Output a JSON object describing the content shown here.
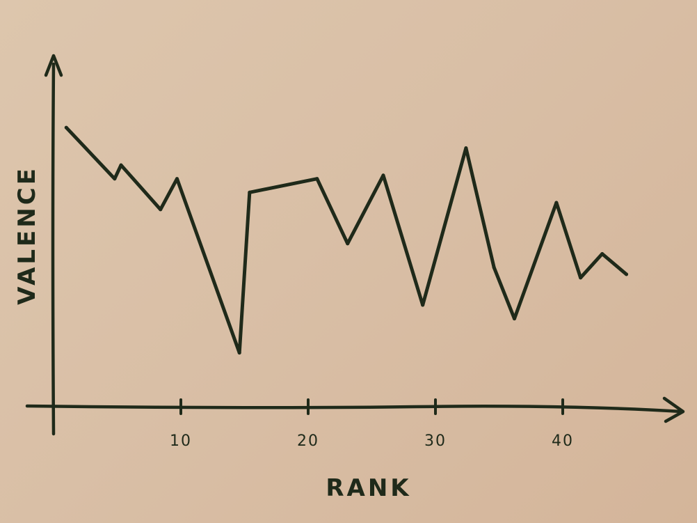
{
  "chart_data": {
    "type": "line",
    "title": "",
    "xlabel": "RANK",
    "ylabel": "VALENCE",
    "x_ticks": [
      {
        "value": 10,
        "label": "10"
      },
      {
        "value": 20,
        "label": "20"
      },
      {
        "value": 30,
        "label": "30"
      },
      {
        "value": 40,
        "label": "40"
      }
    ],
    "xlim": [
      0,
      48
    ],
    "ylim": [
      0,
      10
    ],
    "grid": false,
    "ink_color": "#1f2a1a",
    "series": [
      {
        "points": [
          {
            "x": 1,
            "y": 8.2
          },
          {
            "x": 4.8,
            "y": 6.7
          },
          {
            "x": 5.3,
            "y": 7.1
          },
          {
            "x": 8.4,
            "y": 5.8
          },
          {
            "x": 9.7,
            "y": 6.7
          },
          {
            "x": 14.6,
            "y": 1.6
          },
          {
            "x": 15.4,
            "y": 6.3
          },
          {
            "x": 20.7,
            "y": 6.7
          },
          {
            "x": 23.1,
            "y": 4.8
          },
          {
            "x": 25.9,
            "y": 6.8
          },
          {
            "x": 29,
            "y": 3.0
          },
          {
            "x": 32.4,
            "y": 7.6
          },
          {
            "x": 34.6,
            "y": 4.1
          },
          {
            "x": 36.2,
            "y": 2.6
          },
          {
            "x": 39.5,
            "y": 6.0
          },
          {
            "x": 41.4,
            "y": 3.8
          },
          {
            "x": 43.1,
            "y": 4.5
          },
          {
            "x": 45,
            "y": 3.9
          }
        ]
      }
    ]
  }
}
